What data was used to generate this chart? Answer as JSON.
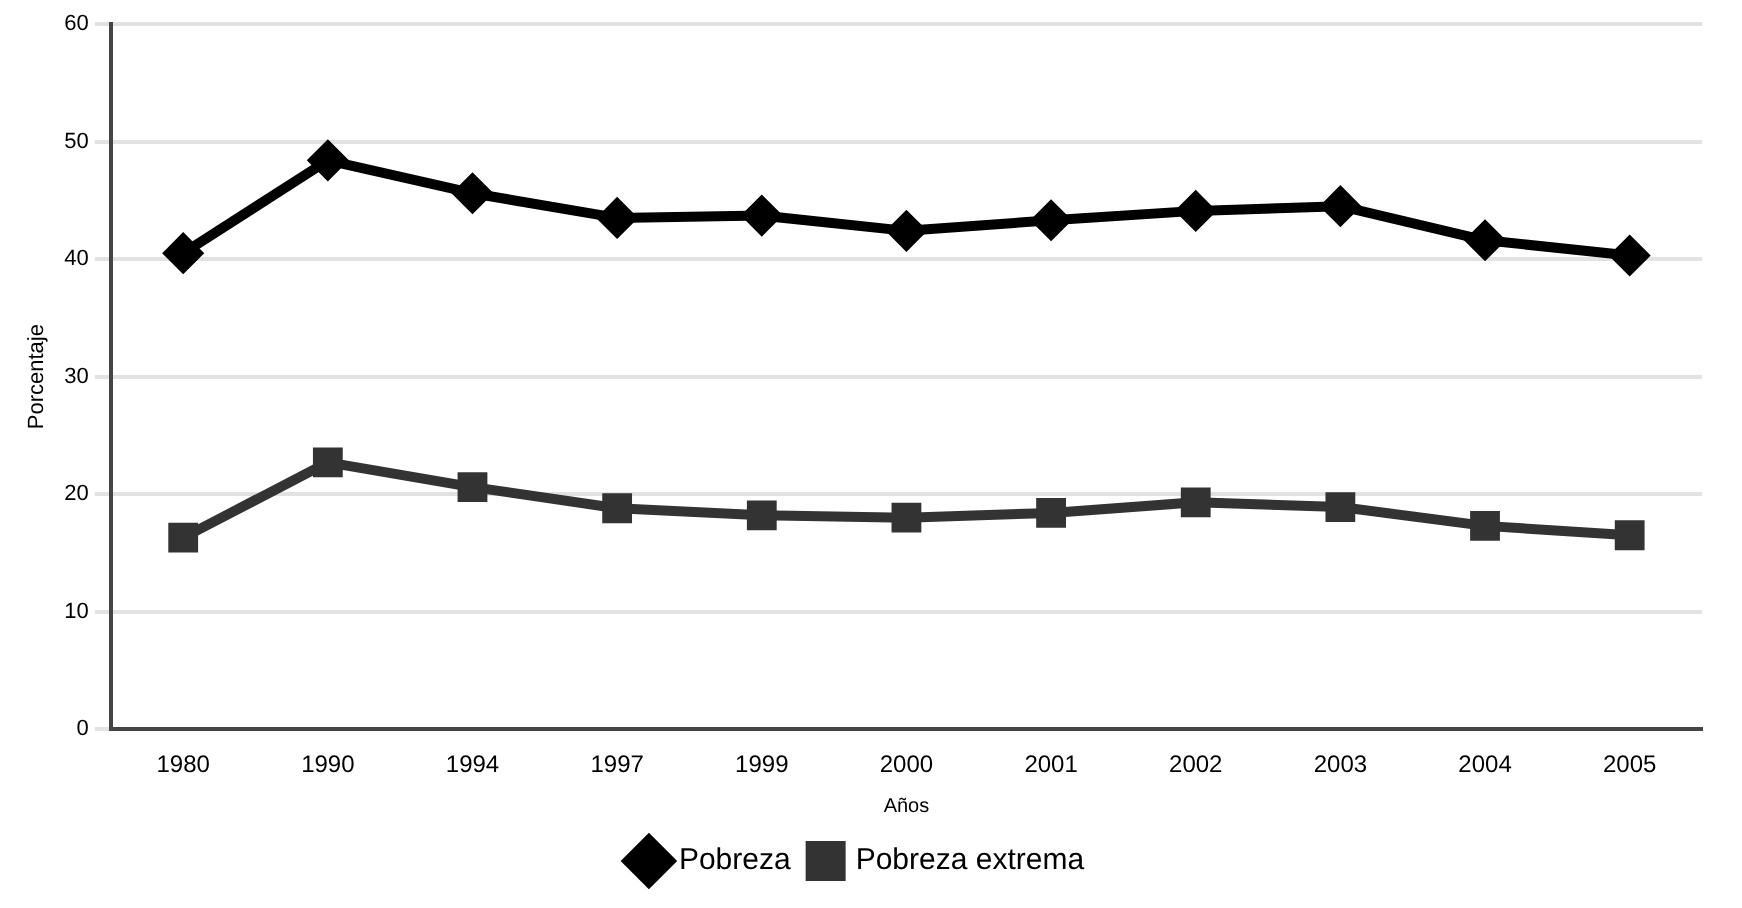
{
  "chart_data": {
    "type": "line",
    "xlabel": "Años",
    "ylabel": "Porcentaje",
    "categories": [
      "1980",
      "1990",
      "1994",
      "1997",
      "1999",
      "2000",
      "2001",
      "2002",
      "2003",
      "2004",
      "2005"
    ],
    "series": [
      {
        "name": "Pobreza",
        "color": "#000000",
        "marker": "diamond",
        "values": [
          40.5,
          48.4,
          45.6,
          43.5,
          43.7,
          42.4,
          43.3,
          44.1,
          44.5,
          41.6,
          40.3
        ]
      },
      {
        "name": "Pobreza extrema",
        "color": "#333333",
        "marker": "square",
        "values": [
          16.3,
          22.7,
          20.6,
          18.8,
          18.2,
          18.0,
          18.4,
          19.3,
          18.9,
          17.3,
          16.5
        ]
      }
    ],
    "ylim": [
      0,
      60
    ],
    "yticks": [
      0,
      10,
      20,
      30,
      40,
      50,
      60
    ],
    "grid": "y",
    "legend": "bottom"
  }
}
